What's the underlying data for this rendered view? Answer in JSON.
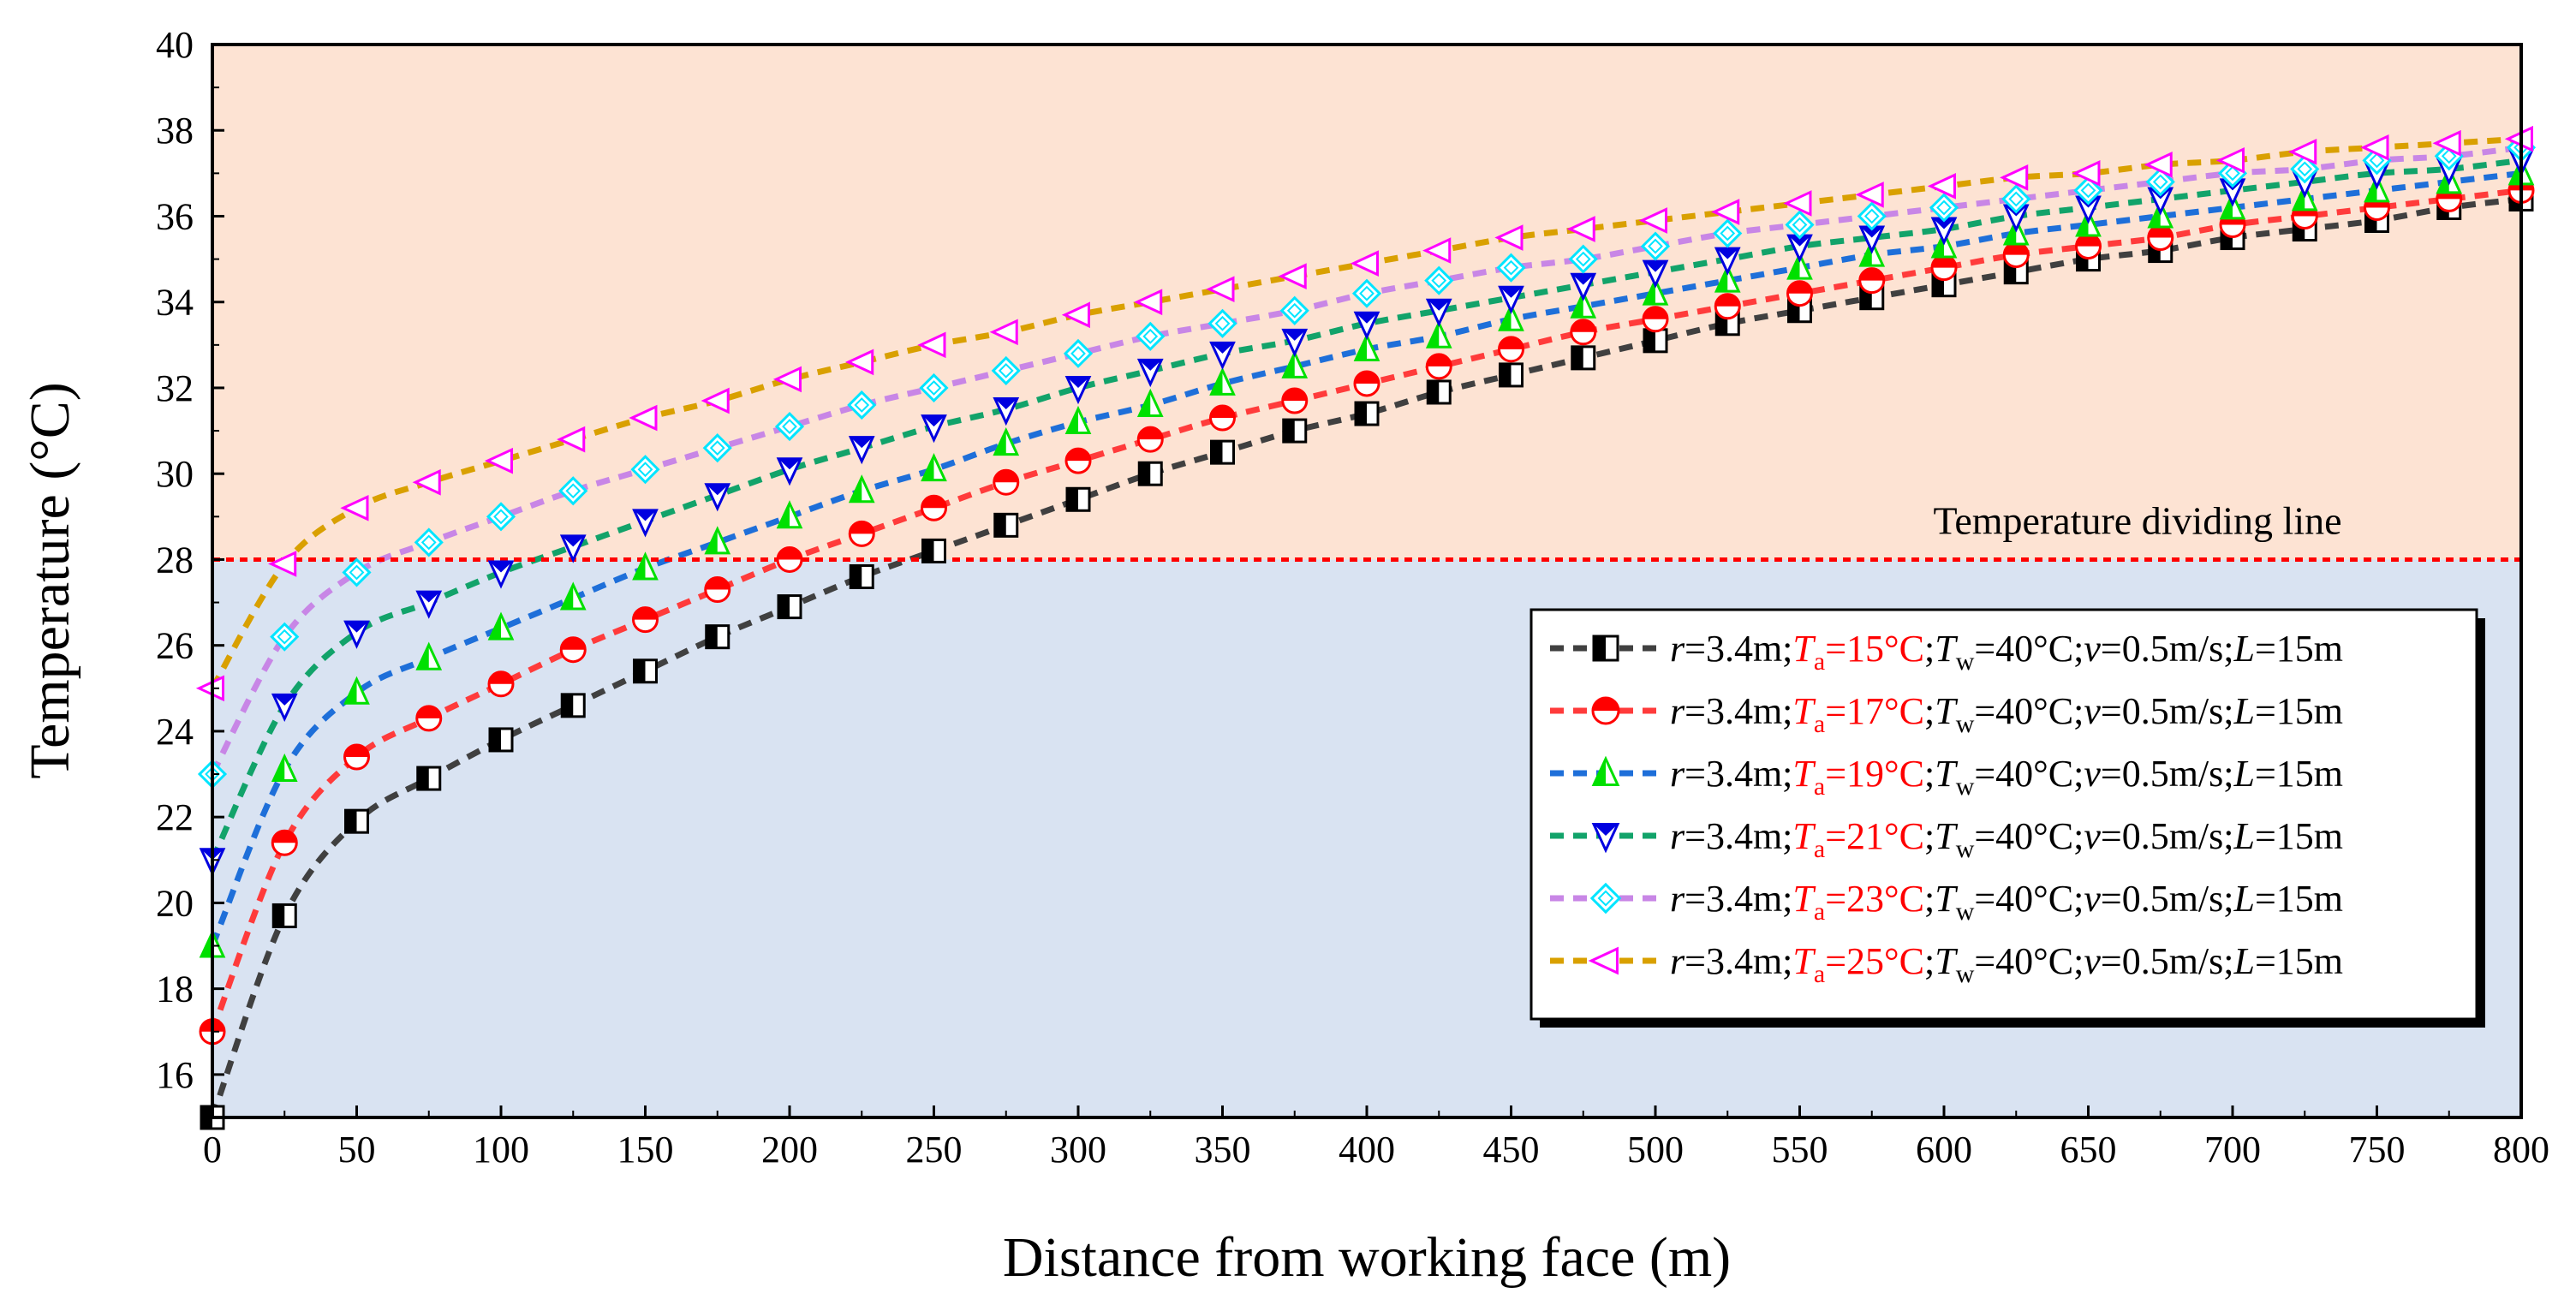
{
  "chart_data": {
    "type": "line",
    "title": "",
    "xlabel": "Distance from working face (m)",
    "ylabel": "Temperature (°C)",
    "xlim": [
      0,
      800
    ],
    "ylim": [
      15,
      40
    ],
    "x_ticks": [
      "0",
      "50",
      "100",
      "150",
      "200",
      "250",
      "300",
      "350",
      "400",
      "450",
      "500",
      "550",
      "600",
      "650",
      "700",
      "750",
      "800"
    ],
    "y_ticks": [
      "16",
      "18",
      "20",
      "22",
      "24",
      "26",
      "28",
      "30",
      "32",
      "34",
      "36",
      "38",
      "40"
    ],
    "grid": false,
    "dividing_line": {
      "y": 28,
      "label": "Temperature dividing line",
      "color": "#ff0000"
    },
    "background_regions": [
      {
        "name": "above",
        "y_from": 28,
        "y_to": 40,
        "color": "#fde3d3"
      },
      {
        "name": "below",
        "y_from": 15,
        "y_to": 28,
        "color": "#d9e3f2"
      }
    ],
    "legend_position": "right-middle",
    "x": [
      0,
      25,
      50,
      75,
      100,
      125,
      150,
      175,
      200,
      225,
      250,
      275,
      300,
      325,
      350,
      375,
      400,
      425,
      450,
      475,
      500,
      525,
      550,
      575,
      600,
      625,
      650,
      675,
      700,
      725,
      750,
      775,
      800
    ],
    "series": [
      {
        "name": "Ta=15°C",
        "legend": {
          "r": "r",
          "r_val": "=3.4m;",
          "Ta": "T",
          "Ta_sub": "a",
          "Ta_val": "=15°C",
          "sep1": ";",
          "Tw": "T",
          "Tw_sub": "w",
          "Tw_val": "=40°C;",
          "v": "v",
          "v_val": "=0.5m/s;",
          "L": "L",
          "L_val": "=15m"
        },
        "line_color": "#404040",
        "marker": "half-square",
        "marker_color": "#000000",
        "values": [
          15.0,
          19.7,
          21.9,
          22.9,
          23.8,
          24.6,
          25.4,
          26.2,
          26.9,
          27.6,
          28.2,
          28.8,
          29.4,
          30.0,
          30.5,
          31.0,
          31.4,
          31.9,
          32.3,
          32.7,
          33.1,
          33.5,
          33.8,
          34.1,
          34.4,
          34.7,
          35.0,
          35.2,
          35.5,
          35.7,
          35.9,
          36.2,
          36.4
        ]
      },
      {
        "name": "Ta=17°C",
        "legend": {
          "r": "r",
          "r_val": "=3.4m;",
          "Ta": "T",
          "Ta_sub": "a",
          "Ta_val": "=17°C",
          "sep1": ";",
          "Tw": "T",
          "Tw_sub": "w",
          "Tw_val": "=40°C;",
          "v": "v",
          "v_val": "=0.5m/s;",
          "L": "L",
          "L_val": "=15m"
        },
        "line_color": "#ff3b3b",
        "marker": "half-circle",
        "marker_color": "#ff0000",
        "values": [
          17.0,
          21.4,
          23.4,
          24.3,
          25.1,
          25.9,
          26.6,
          27.3,
          28.0,
          28.6,
          29.2,
          29.8,
          30.3,
          30.8,
          31.3,
          31.7,
          32.1,
          32.5,
          32.9,
          33.3,
          33.6,
          33.9,
          34.2,
          34.5,
          34.8,
          35.1,
          35.3,
          35.5,
          35.8,
          36.0,
          36.2,
          36.4,
          36.6
        ]
      },
      {
        "name": "Ta=19°C",
        "legend": {
          "r": "r",
          "r_val": "=3.4m;",
          "Ta": "T",
          "Ta_sub": "a",
          "Ta_val": "=19°C",
          "sep1": ";",
          "Tw": "T",
          "Tw_sub": "w",
          "Tw_val": "=40°C;",
          "v": "v",
          "v_val": "=0.5m/s;",
          "L": "L",
          "L_val": "=15m"
        },
        "line_color": "#1e6fd9",
        "marker": "half-triangle-up",
        "marker_color": "#00e000",
        "values": [
          19.0,
          23.1,
          24.9,
          25.7,
          26.4,
          27.1,
          27.8,
          28.4,
          29.0,
          29.6,
          30.1,
          30.7,
          31.2,
          31.6,
          32.1,
          32.5,
          32.9,
          33.2,
          33.6,
          33.9,
          34.2,
          34.5,
          34.8,
          35.1,
          35.3,
          35.6,
          35.8,
          36.0,
          36.2,
          36.4,
          36.6,
          36.8,
          37.0
        ]
      },
      {
        "name": "Ta=21°C",
        "legend": {
          "r": "r",
          "r_val": "=3.4m;",
          "Ta": "T",
          "Ta_sub": "a",
          "Ta_val": "=21°C",
          "sep1": ";",
          "Tw": "T",
          "Tw_sub": "w",
          "Tw_val": "=40°C;",
          "v": "v",
          "v_val": "=0.5m/s;",
          "L": "L",
          "L_val": "=15m"
        },
        "line_color": "#12a36a",
        "marker": "half-triangle-down",
        "marker_color": "#0000e0",
        "values": [
          21.0,
          24.6,
          26.3,
          27.0,
          27.7,
          28.3,
          28.9,
          29.5,
          30.1,
          30.6,
          31.1,
          31.5,
          32.0,
          32.4,
          32.8,
          33.1,
          33.5,
          33.8,
          34.1,
          34.4,
          34.7,
          35.0,
          35.3,
          35.5,
          35.7,
          36.0,
          36.2,
          36.4,
          36.6,
          36.8,
          37.0,
          37.1,
          37.3
        ]
      },
      {
        "name": "Ta=23°C",
        "legend": {
          "r": "r",
          "r_val": "=3.4m;",
          "Ta": "T",
          "Ta_sub": "a",
          "Ta_val": "=23°C",
          "sep1": ";",
          "Tw": "T",
          "Tw_sub": "w",
          "Tw_val": "=40°C;",
          "v": "v",
          "v_val": "=0.5m/s;",
          "L": "L",
          "L_val": "=15m"
        },
        "line_color": "#c886e6",
        "marker": "half-diamond",
        "marker_color": "#00e5ff",
        "values": [
          23.0,
          26.2,
          27.7,
          28.4,
          29.0,
          29.6,
          30.1,
          30.6,
          31.1,
          31.6,
          32.0,
          32.4,
          32.8,
          33.2,
          33.5,
          33.8,
          34.2,
          34.5,
          34.8,
          35.0,
          35.3,
          35.6,
          35.8,
          36.0,
          36.2,
          36.4,
          36.6,
          36.8,
          37.0,
          37.1,
          37.3,
          37.4,
          37.6
        ]
      },
      {
        "name": "Ta=25°C",
        "legend": {
          "r": "r",
          "r_val": "=3.4m;",
          "Ta": "T",
          "Ta_sub": "a",
          "Ta_val": "=25°C",
          "sep1": ";",
          "Tw": "T",
          "Tw_sub": "w",
          "Tw_val": "=40°C;",
          "v": "v",
          "v_val": "=0.5m/s;",
          "L": "L",
          "L_val": "=15m"
        },
        "line_color": "#d9a000",
        "marker": "half-triangle-left",
        "marker_color": "#ff00ff",
        "values": [
          25.0,
          27.9,
          29.2,
          29.8,
          30.3,
          30.8,
          31.3,
          31.7,
          32.2,
          32.6,
          33.0,
          33.3,
          33.7,
          34.0,
          34.3,
          34.6,
          34.9,
          35.2,
          35.5,
          35.7,
          35.9,
          36.1,
          36.3,
          36.5,
          36.7,
          36.9,
          37.0,
          37.2,
          37.3,
          37.5,
          37.6,
          37.7,
          37.8
        ]
      }
    ],
    "legend_colors": {
      "Ta_text": "#ff0000",
      "text": "#000000"
    }
  }
}
